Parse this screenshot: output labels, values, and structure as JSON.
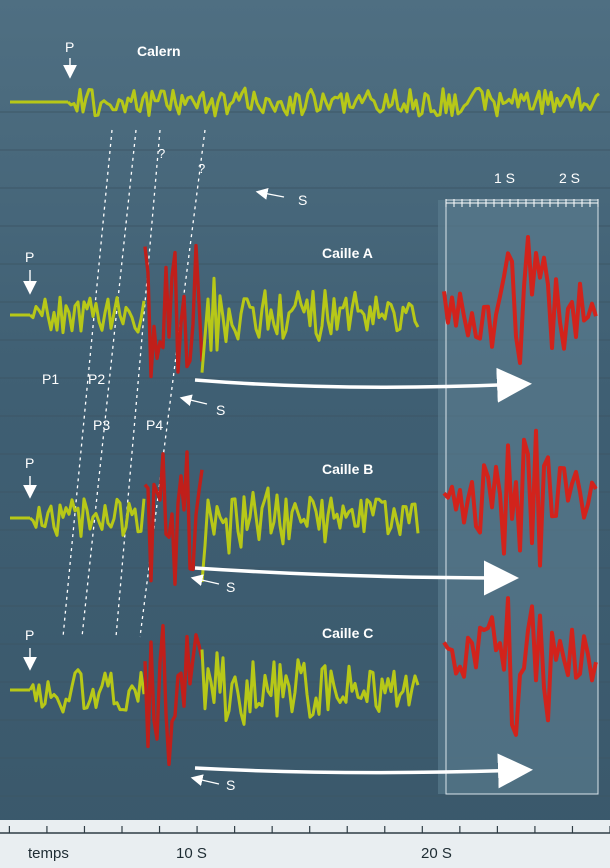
{
  "chart_data": {
    "type": "line",
    "title": "",
    "xlabel": "temps",
    "ylabel": "",
    "xlim": [
      -8.5,
      24
    ],
    "x_ticks": [
      {
        "value": 10,
        "label": "10 S"
      },
      {
        "value": 20,
        "label": "20 S"
      }
    ],
    "inset_ticks": [
      {
        "value": 1,
        "label": "1 S"
      },
      {
        "value": 2,
        "label": "2 S"
      }
    ],
    "station_labels": {
      "calern": "Calern",
      "caille_a": "Caille A",
      "caille_b": "Caille B",
      "caille_c": "Caille C"
    },
    "phase_labels": {
      "p": "P",
      "s": "S",
      "p1": "P1",
      "p2": "P2",
      "p3": "P3",
      "p4": "P4",
      "unknown": "?"
    },
    "series": [
      {
        "name": "Calern",
        "p_arrival": 0,
        "s_arrival": 10.4,
        "end": 24,
        "color": "#b7c818"
      },
      {
        "name": "Caille A",
        "p_arrival": -5.4,
        "s_arrival": 8.5,
        "end": 18.5,
        "color": "#b7c818",
        "highlight": [
          6.2,
          9.0
        ],
        "highlight_color": "#c01f1a"
      },
      {
        "name": "Caille B",
        "p_arrival": -5.4,
        "s_arrival": 8.5,
        "end": 18.5,
        "color": "#b7c818",
        "highlight": [
          6.2,
          9.0
        ],
        "highlight_color": "#c01f1a"
      },
      {
        "name": "Caille C",
        "p_arrival": -5.4,
        "s_arrival": 8.5,
        "end": 18.5,
        "color": "#b7c818",
        "highlight": [
          6.2,
          9.0
        ],
        "highlight_color": "#c01f1a"
      }
    ],
    "grid": true
  }
}
